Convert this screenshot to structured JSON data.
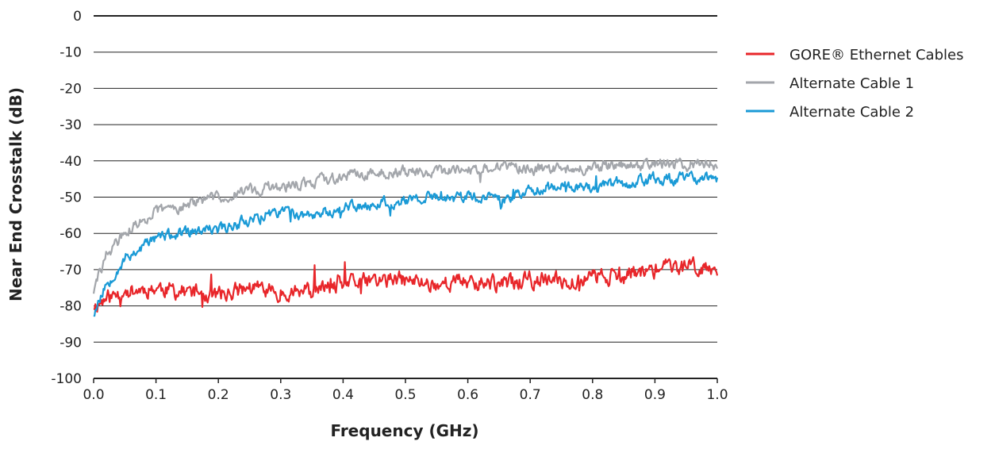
{
  "chart_data": {
    "type": "line",
    "title": "",
    "xlabel": "Frequency (GHz)",
    "ylabel": "Near End Crosstalk (dB)",
    "xlim": [
      0.0,
      1.0
    ],
    "ylim": [
      -100,
      0
    ],
    "x_ticks": [
      "0.0",
      "0.1",
      "0.2",
      "0.3",
      "0.4",
      "0.5",
      "0.6",
      "0.7",
      "0.8",
      "0.9",
      "1.0"
    ],
    "y_ticks": [
      "0",
      "-10",
      "-20",
      "-30",
      "-40",
      "-50",
      "-60",
      "-70",
      "-80",
      "-90",
      "-100"
    ],
    "grid": "horizontal",
    "legend_position": "top-right",
    "x": [
      0.0,
      0.02,
      0.05,
      0.1,
      0.15,
      0.2,
      0.25,
      0.3,
      0.35,
      0.4,
      0.45,
      0.5,
      0.55,
      0.6,
      0.65,
      0.7,
      0.75,
      0.8,
      0.85,
      0.9,
      0.95,
      1.0
    ],
    "series": [
      {
        "name": "GORE® Ethernet Cables",
        "color": "#e8262a",
        "values": [
          -80,
          -78,
          -76,
          -75,
          -76,
          -77,
          -75,
          -76,
          -76,
          -74,
          -73,
          -73,
          -74,
          -73,
          -74,
          -73,
          -73,
          -72,
          -71,
          -70,
          -69,
          -69
        ]
      },
      {
        "name": "Alternate Cable 1",
        "color": "#a3a6ab",
        "values": [
          -76,
          -66,
          -60,
          -54,
          -52,
          -50,
          -48,
          -47,
          -46,
          -44,
          -43,
          -43,
          -43,
          -42,
          -42,
          -42,
          -42,
          -42,
          -41,
          -41,
          -41,
          -41
        ]
      },
      {
        "name": "Alternate Cable 2",
        "color": "#1a9ad6",
        "values": [
          -82,
          -74,
          -67,
          -61,
          -60,
          -59,
          -56,
          -54,
          -55,
          -53,
          -52,
          -51,
          -50,
          -50,
          -51,
          -48,
          -47,
          -47,
          -46,
          -45,
          -45,
          -45
        ]
      }
    ]
  }
}
